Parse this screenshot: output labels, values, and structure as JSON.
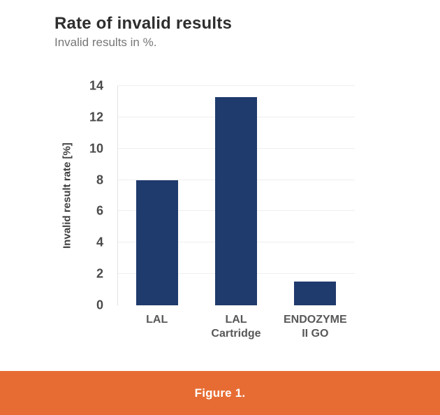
{
  "header": {
    "title": "Rate of invalid results",
    "subtitle": "Invalid results in %."
  },
  "footer": {
    "caption": "Figure 1.",
    "background_color": "#E76C33",
    "text_color": "#FFFFFF"
  },
  "chart_data": {
    "type": "bar",
    "title": "Rate of invalid results",
    "subtitle": "Invalid results in %.",
    "categories": [
      "LAL",
      "LAL\nCartridge",
      "ENDOZYME\nII GO"
    ],
    "values": [
      8,
      13.3,
      1.5
    ],
    "xlabel": "",
    "ylabel": "Invalid result rate [%]",
    "ylim": [
      0,
      14
    ],
    "yticks": [
      0,
      2,
      4,
      6,
      8,
      10,
      12,
      14
    ],
    "grid": "horizontal-light",
    "legend": "none",
    "bar_color": "#1F3A6D",
    "gridline_color": "#efefef"
  }
}
